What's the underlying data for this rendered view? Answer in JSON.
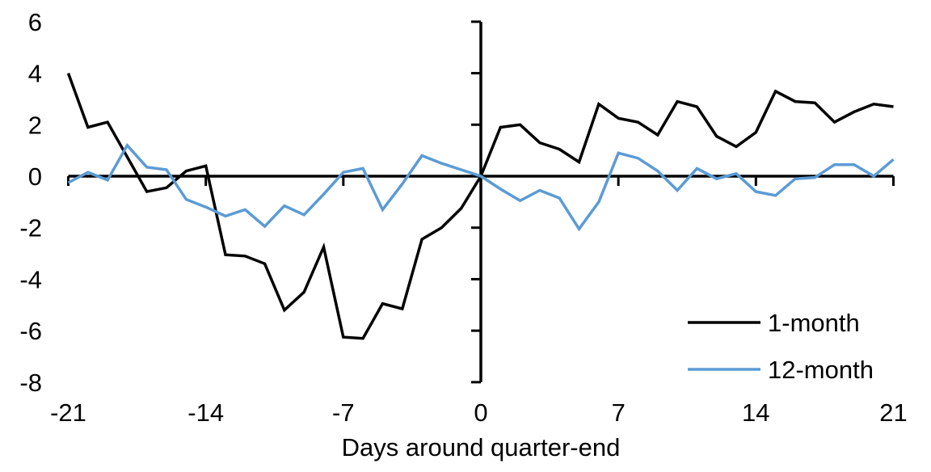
{
  "chart_data": {
    "type": "line",
    "title": "",
    "xlabel": "Days around quarter-end",
    "ylabel": "",
    "xlim": [
      -21,
      21
    ],
    "ylim": [
      -8,
      6
    ],
    "grid": false,
    "legend_position": "inside-bottom-right",
    "axis_color": "#000000",
    "x_ticks": [
      -21,
      -14,
      -7,
      0,
      7,
      14,
      21
    ],
    "y_ticks": [
      6,
      4,
      2,
      0,
      -2,
      -4,
      -6,
      -8
    ],
    "x": [
      -21,
      -20,
      -19,
      -18,
      -17,
      -16,
      -15,
      -14,
      -13,
      -12,
      -11,
      -10,
      -9,
      -8,
      -7,
      -6,
      -5,
      -4,
      -3,
      -2,
      -1,
      0,
      1,
      2,
      3,
      4,
      5,
      6,
      7,
      8,
      9,
      10,
      11,
      12,
      13,
      14,
      15,
      16,
      17,
      18,
      19,
      20,
      21
    ],
    "series": [
      {
        "name": "1-month",
        "color": "#000000",
        "values": [
          4.0,
          1.9,
          2.1,
          0.75,
          -0.6,
          -0.45,
          0.2,
          0.4,
          -3.05,
          -3.1,
          -3.4,
          -5.2,
          -4.5,
          -2.75,
          -6.25,
          -6.3,
          -4.95,
          -5.15,
          -2.45,
          -2.0,
          -1.25,
          0.0,
          1.9,
          2.0,
          1.3,
          1.05,
          0.55,
          2.8,
          2.25,
          2.1,
          1.6,
          2.9,
          2.7,
          1.55,
          1.15,
          1.7,
          3.3,
          2.9,
          2.85,
          2.1,
          2.5,
          2.8,
          2.7
        ]
      },
      {
        "name": "12-month",
        "color": "#5B9BD5",
        "values": [
          -0.25,
          0.15,
          -0.15,
          1.2,
          0.35,
          0.25,
          -0.9,
          -1.2,
          -1.55,
          -1.3,
          -1.95,
          -1.15,
          -1.5,
          -0.7,
          0.15,
          0.3,
          -1.3,
          -0.3,
          0.8,
          0.5,
          0.25,
          0.0,
          -0.5,
          -0.95,
          -0.55,
          -0.85,
          -2.05,
          -1.0,
          0.9,
          0.7,
          0.2,
          -0.55,
          0.3,
          -0.1,
          0.1,
          -0.6,
          -0.75,
          -0.1,
          -0.05,
          0.45,
          0.45,
          0.0,
          0.65
        ]
      }
    ]
  }
}
